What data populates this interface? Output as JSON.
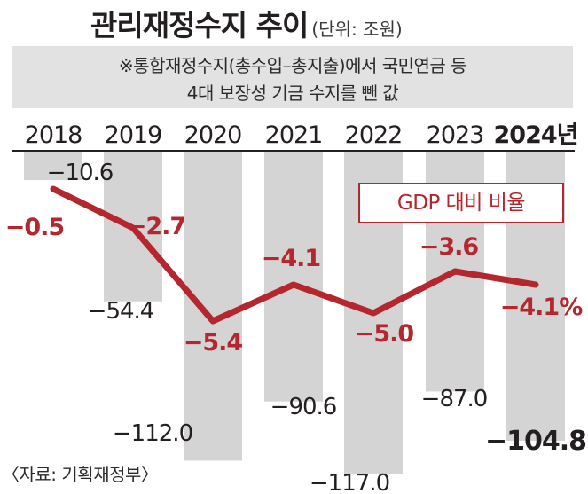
{
  "title": "관리재정수지 추이",
  "unit": "(단위: 조원)",
  "note": [
    "※통합재정수지(총수입–총지출)에서 국민연금 등",
    "4대 보장성 기금 수지를 뺀 값"
  ],
  "source": "〈자료: 기획재정부〉",
  "legend": {
    "ratio_label": "GDP 대비 비율"
  },
  "colors": {
    "bar": "#d4d4d4",
    "line": "#b5272e",
    "axis": "#231f20",
    "text": "#231f20"
  },
  "chart_data": {
    "type": "bar",
    "categories": [
      "2018",
      "2019",
      "2020",
      "2021",
      "2022",
      "2023",
      "2024년"
    ],
    "series": [
      {
        "name": "",
        "type": "bar",
        "values": [
          -10.6,
          -54.4,
          -112.0,
          -90.6,
          -117.0,
          -87.0,
          -104.8
        ],
        "labels": [
          "−10.6",
          "−54.4",
          "−112.0",
          "−90.6",
          "−117.0",
          "−87.0",
          "−104.8"
        ]
      },
      {
        "name": "GDP 대비 비율",
        "type": "line",
        "values": [
          -0.5,
          -2.7,
          -5.4,
          -4.1,
          -5.0,
          -3.6,
          -4.1
        ],
        "labels": [
          "−0.5",
          "−2.7",
          "−5.4",
          "−4.1",
          "−5.0",
          "−3.6",
          "−4.1%"
        ]
      }
    ],
    "title": "관리재정수지 추이",
    "xlabel": "",
    "ylabel": "",
    "ylim": [
      -117,
      0
    ],
    "highlight_category": "2024년",
    "grid": false,
    "legend_position": "top-right"
  }
}
